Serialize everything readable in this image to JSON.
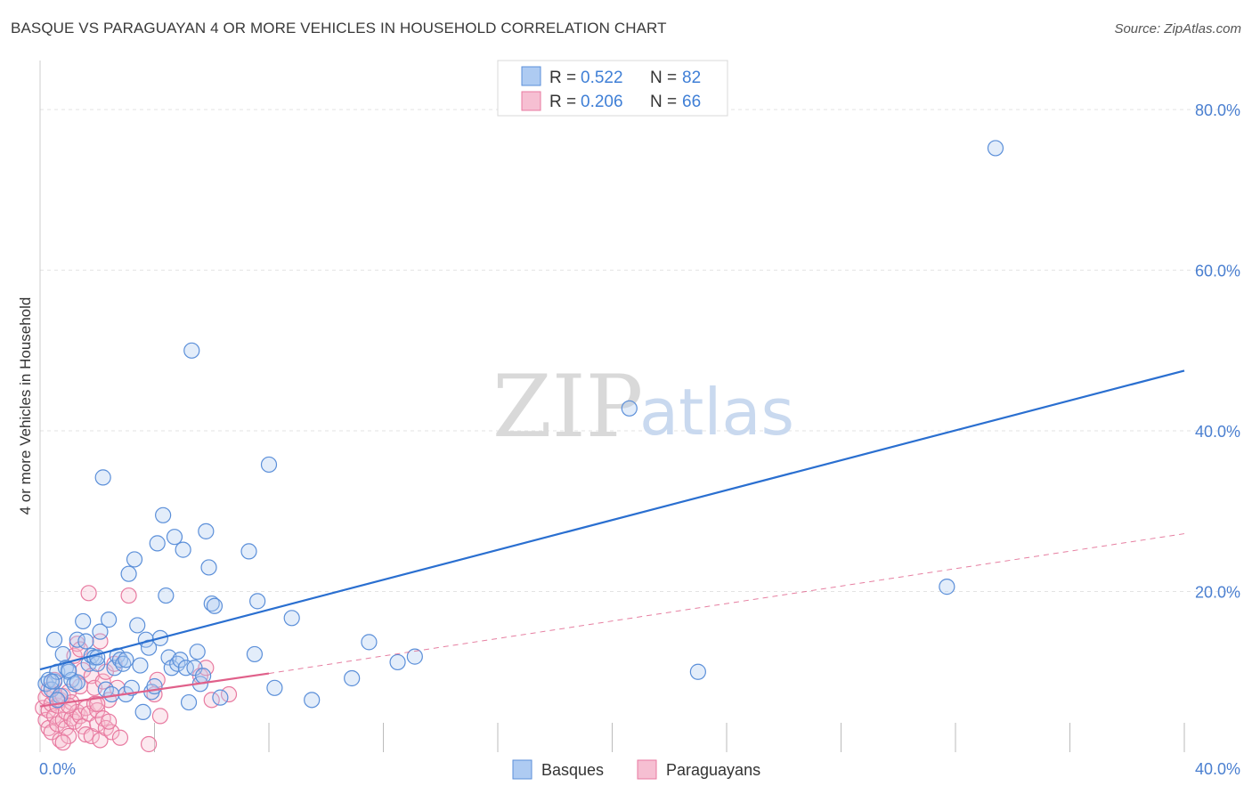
{
  "header": {
    "title": "BASQUE VS PARAGUAYAN 4 OR MORE VEHICLES IN HOUSEHOLD CORRELATION CHART",
    "source": "Source: ZipAtlas.com"
  },
  "watermark": {
    "zip": "ZIP",
    "atlas": "atlas"
  },
  "legend_top": {
    "rows": [
      {
        "r_label": "R =",
        "r_value": "0.522",
        "n_label": "N =",
        "n_value": "82"
      },
      {
        "r_label": "R =",
        "r_value": "0.206",
        "n_label": "N =",
        "n_value": "66"
      }
    ]
  },
  "legend_bottom": {
    "items": [
      "Basques",
      "Paraguayans"
    ]
  },
  "colors": {
    "blue": "#5b8fd9",
    "blue_fill": "#aecbf2",
    "blue_line": "#2a6fd0",
    "pink": "#e87aa0",
    "pink_fill": "#f6bfd2",
    "pink_line": "#e0608a",
    "grid": "#e3e3e3",
    "axis_text": "#4a7fd0"
  },
  "chart_data": {
    "type": "scatter",
    "title": "BASQUE VS PARAGUAYAN 4 OR MORE VEHICLES IN HOUSEHOLD CORRELATION CHART",
    "xlabel": "",
    "ylabel": "4 or more Vehicles in Household",
    "xlim": [
      0,
      40
    ],
    "ylim": [
      0,
      85
    ],
    "x_tick_labels": [
      "0.0%",
      "40.0%"
    ],
    "y_ticks": [
      20,
      40,
      60,
      80
    ],
    "y_tick_labels": [
      "20.0%",
      "40.0%",
      "60.0%",
      "80.0%"
    ],
    "grid": true,
    "series": [
      {
        "name": "Basques",
        "R": 0.522,
        "N": 82,
        "trend": {
          "x": [
            0,
            40
          ],
          "y": [
            10.3,
            47.5
          ]
        },
        "points": [
          [
            0.2,
            8.5
          ],
          [
            0.3,
            9.0
          ],
          [
            0.4,
            7.8
          ],
          [
            0.5,
            8.8
          ],
          [
            0.6,
            10.0
          ],
          [
            0.5,
            14.0
          ],
          [
            0.7,
            7.0
          ],
          [
            0.8,
            12.2
          ],
          [
            0.9,
            10.5
          ],
          [
            1.0,
            10.0
          ],
          [
            1.1,
            9.0
          ],
          [
            1.2,
            8.5
          ],
          [
            1.3,
            14.0
          ],
          [
            1.5,
            16.3
          ],
          [
            1.6,
            13.8
          ],
          [
            1.7,
            11.0
          ],
          [
            1.8,
            12.0
          ],
          [
            1.9,
            11.8
          ],
          [
            2.0,
            11.0
          ],
          [
            2.1,
            15.0
          ],
          [
            2.2,
            34.2
          ],
          [
            2.3,
            7.8
          ],
          [
            2.4,
            16.5
          ],
          [
            2.5,
            7.2
          ],
          [
            2.6,
            10.5
          ],
          [
            2.7,
            12.0
          ],
          [
            2.8,
            11.5
          ],
          [
            2.9,
            11.0
          ],
          [
            3.0,
            7.2
          ],
          [
            3.1,
            22.2
          ],
          [
            3.2,
            8.0
          ],
          [
            3.3,
            24.0
          ],
          [
            3.4,
            15.8
          ],
          [
            3.5,
            10.8
          ],
          [
            3.6,
            5.0
          ],
          [
            3.7,
            14.0
          ],
          [
            3.8,
            13.0
          ],
          [
            3.9,
            7.5
          ],
          [
            4.0,
            8.2
          ],
          [
            4.1,
            26.0
          ],
          [
            4.2,
            14.2
          ],
          [
            4.3,
            29.5
          ],
          [
            4.4,
            19.5
          ],
          [
            4.5,
            11.8
          ],
          [
            4.6,
            10.5
          ],
          [
            4.7,
            26.8
          ],
          [
            4.8,
            11.0
          ],
          [
            4.9,
            11.5
          ],
          [
            5.0,
            25.2
          ],
          [
            5.1,
            10.5
          ],
          [
            5.2,
            6.2
          ],
          [
            5.3,
            50.0
          ],
          [
            5.4,
            10.5
          ],
          [
            5.5,
            12.5
          ],
          [
            5.6,
            8.5
          ],
          [
            5.7,
            9.5
          ],
          [
            5.8,
            27.5
          ],
          [
            5.9,
            23.0
          ],
          [
            6.0,
            18.5
          ],
          [
            6.1,
            18.2
          ],
          [
            6.3,
            6.8
          ],
          [
            7.3,
            25.0
          ],
          [
            7.5,
            12.2
          ],
          [
            7.6,
            18.8
          ],
          [
            8.0,
            35.8
          ],
          [
            8.2,
            8.0
          ],
          [
            8.8,
            16.7
          ],
          [
            9.5,
            6.5
          ],
          [
            10.9,
            9.2
          ],
          [
            11.5,
            13.7
          ],
          [
            12.5,
            11.2
          ],
          [
            13.1,
            11.9
          ],
          [
            20.6,
            42.8
          ],
          [
            23.0,
            10.0
          ],
          [
            31.7,
            20.6
          ],
          [
            33.4,
            75.2
          ],
          [
            0.4,
            8.8
          ],
          [
            1.0,
            10.2
          ],
          [
            2.0,
            11.8
          ],
          [
            3.0,
            11.5
          ],
          [
            0.6,
            6.5
          ],
          [
            1.3,
            8.7
          ]
        ]
      },
      {
        "name": "Paraguayans",
        "R": 0.206,
        "N": 66,
        "trend": {
          "x": [
            0,
            8
          ],
          "y": [
            5.7,
            9.8
          ]
        },
        "trend_extension": {
          "x": [
            8,
            40
          ],
          "y": [
            9.8,
            27.2
          ]
        },
        "points": [
          [
            0.1,
            5.5
          ],
          [
            0.2,
            4.0
          ],
          [
            0.2,
            6.8
          ],
          [
            0.3,
            3.0
          ],
          [
            0.3,
            5.2
          ],
          [
            0.4,
            6.0
          ],
          [
            0.4,
            2.5
          ],
          [
            0.5,
            4.5
          ],
          [
            0.5,
            7.2
          ],
          [
            0.6,
            3.5
          ],
          [
            0.6,
            5.8
          ],
          [
            0.7,
            1.5
          ],
          [
            0.7,
            6.5
          ],
          [
            0.8,
            4.0
          ],
          [
            0.8,
            7.0
          ],
          [
            0.9,
            3.0
          ],
          [
            0.9,
            5.0
          ],
          [
            1.0,
            7.5
          ],
          [
            1.0,
            2.0
          ],
          [
            1.1,
            4.2
          ],
          [
            1.1,
            6.2
          ],
          [
            1.2,
            3.8
          ],
          [
            1.2,
            12.0
          ],
          [
            1.3,
            5.0
          ],
          [
            1.3,
            13.5
          ],
          [
            1.4,
            4.5
          ],
          [
            1.4,
            8.2
          ],
          [
            1.5,
            3.2
          ],
          [
            1.5,
            10.2
          ],
          [
            1.6,
            5.5
          ],
          [
            1.6,
            2.2
          ],
          [
            1.7,
            19.8
          ],
          [
            1.7,
            4.8
          ],
          [
            1.8,
            9.5
          ],
          [
            1.8,
            2.0
          ],
          [
            1.9,
            6.0
          ],
          [
            1.9,
            8.0
          ],
          [
            2.0,
            3.5
          ],
          [
            2.0,
            5.2
          ],
          [
            2.1,
            13.8
          ],
          [
            2.1,
            1.5
          ],
          [
            2.2,
            4.2
          ],
          [
            2.2,
            8.8
          ],
          [
            2.3,
            3.0
          ],
          [
            2.3,
            10.0
          ],
          [
            2.4,
            6.5
          ],
          [
            2.5,
            2.5
          ],
          [
            2.6,
            11.0
          ],
          [
            2.7,
            8.0
          ],
          [
            2.8,
            1.8
          ],
          [
            3.1,
            19.5
          ],
          [
            3.8,
            1.0
          ],
          [
            4.0,
            7.2
          ],
          [
            4.1,
            9.0
          ],
          [
            4.2,
            4.5
          ],
          [
            5.6,
            9.5
          ],
          [
            5.8,
            10.5
          ],
          [
            6.0,
            6.5
          ],
          [
            6.6,
            7.2
          ],
          [
            0.3,
            7.8
          ],
          [
            0.8,
            1.2
          ],
          [
            1.0,
            5.8
          ],
          [
            1.4,
            12.8
          ],
          [
            2.0,
            6.0
          ],
          [
            2.4,
            3.8
          ],
          [
            0.5,
            9.0
          ]
        ]
      }
    ]
  }
}
